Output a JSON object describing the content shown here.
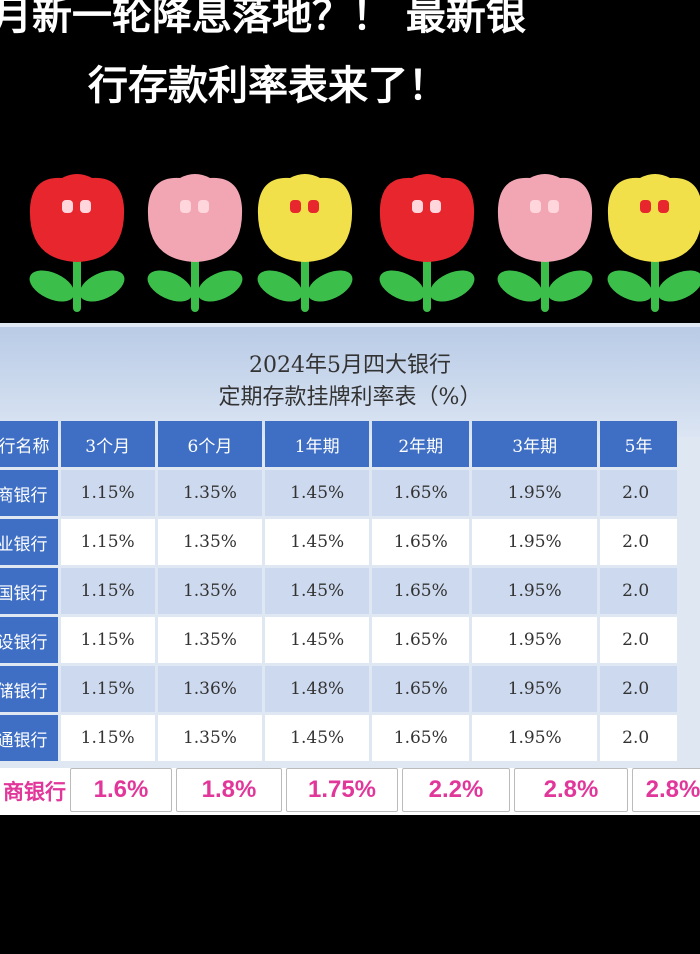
{
  "headline": {
    "line1": "月新一轮降息落地？！ 最新银",
    "line2": "行存款利率表来了！"
  },
  "flowers": [
    {
      "color": "red",
      "hex": "#e8262d"
    },
    {
      "color": "pink",
      "hex": "#f2a6b4"
    },
    {
      "color": "yellow",
      "hex": "#f2e04a"
    },
    {
      "color": "red",
      "hex": "#e8262d"
    },
    {
      "color": "pink",
      "hex": "#f2a6b4"
    },
    {
      "color": "yellow",
      "hex": "#f2e04a"
    }
  ],
  "table": {
    "title_line1": "2024年5月四大银行",
    "title_line2": "定期存款挂牌利率表（%）",
    "headers": [
      "行名称",
      "3个月",
      "6个月",
      "1年期",
      "2年期",
      "3年期",
      "5年"
    ],
    "rows": [
      {
        "name": "商银行",
        "values": [
          "1.15%",
          "1.35%",
          "1.45%",
          "1.65%",
          "1.95%",
          "2.0"
        ]
      },
      {
        "name": "业银行",
        "values": [
          "1.15%",
          "1.35%",
          "1.45%",
          "1.65%",
          "1.95%",
          "2.0"
        ]
      },
      {
        "name": "国银行",
        "values": [
          "1.15%",
          "1.35%",
          "1.45%",
          "1.65%",
          "1.95%",
          "2.0"
        ]
      },
      {
        "name": "设银行",
        "values": [
          "1.15%",
          "1.35%",
          "1.45%",
          "1.65%",
          "1.95%",
          "2.0"
        ]
      },
      {
        "name": "储银行",
        "values": [
          "1.15%",
          "1.36%",
          "1.48%",
          "1.65%",
          "1.95%",
          "2.0"
        ]
      },
      {
        "name": "通银行",
        "values": [
          "1.15%",
          "1.35%",
          "1.45%",
          "1.65%",
          "1.95%",
          "2.0"
        ]
      }
    ]
  },
  "highlight": {
    "name": "商银行",
    "values": [
      "1.6%",
      "1.8%",
      "1.75%",
      "2.2%",
      "2.8%",
      "2.8%"
    ]
  },
  "colors": {
    "header_blue": "#3f6fc4",
    "accent_pink": "#e2379a"
  }
}
